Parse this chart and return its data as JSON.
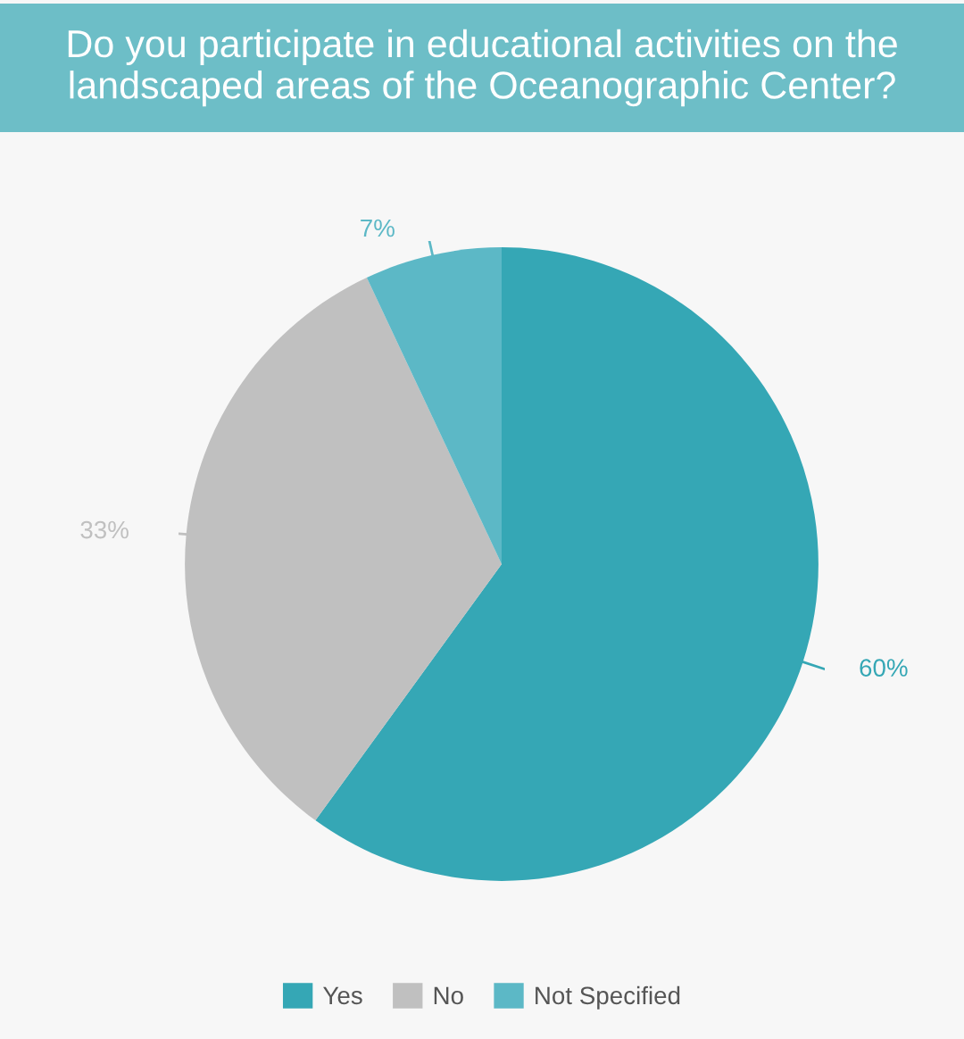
{
  "chart_data": {
    "type": "pie",
    "title": "Do you participate in educational activities on the landscaped areas of the Oceanographic Center?",
    "categories": [
      "Yes",
      "No",
      "Not Specified"
    ],
    "values": [
      60,
      33,
      7
    ],
    "colors": [
      "#35a7b5",
      "#c0c0c0",
      "#5cb8c6"
    ],
    "value_labels": [
      "60%",
      "33%",
      "7%"
    ],
    "legend": "bottom"
  }
}
